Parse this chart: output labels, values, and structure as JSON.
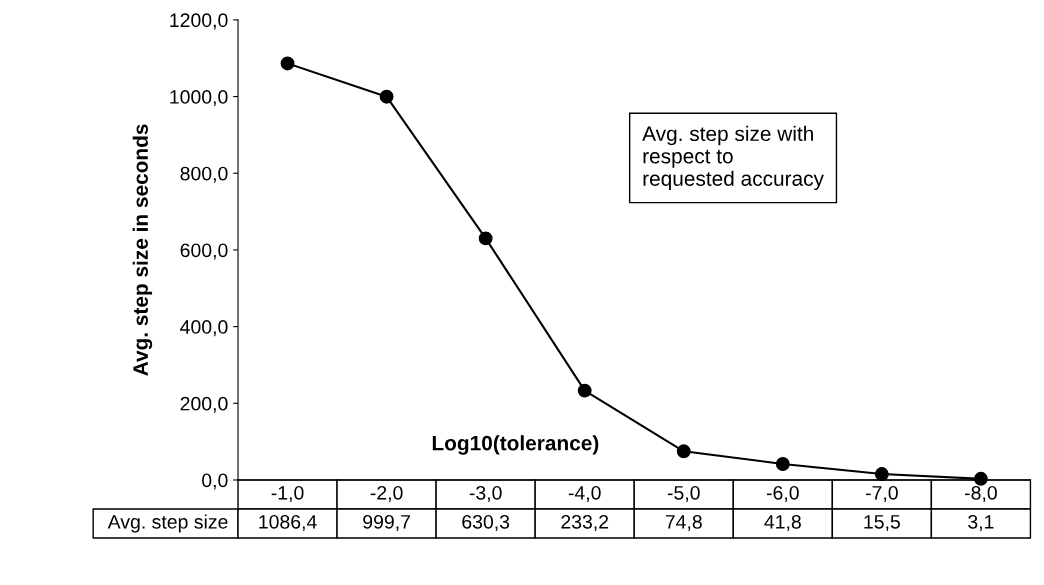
{
  "chart_data": {
    "type": "line",
    "ylabel": "Avg. step size in seconds",
    "xlabel": "Log10(tolerance)",
    "categories": [
      "-1,0",
      "-2,0",
      "-3,0",
      "-4,0",
      "-5,0",
      "-6,0",
      "-7,0",
      "-8,0"
    ],
    "series": [
      {
        "name": "Avg. step size",
        "color": "#000000",
        "values": [
          1086.4,
          999.7,
          630.3,
          233.2,
          74.8,
          41.8,
          15.5,
          3.1
        ],
        "value_labels": [
          "1086,4",
          "999,7",
          "630,3",
          "233,2",
          "74,8",
          "41,8",
          "15,5",
          "3,1"
        ]
      }
    ],
    "ylim": [
      0,
      1200
    ],
    "yticks": [
      {
        "value": 0,
        "label": "0,0"
      },
      {
        "value": 200,
        "label": "200,0"
      },
      {
        "value": 400,
        "label": "400,0"
      },
      {
        "value": 600,
        "label": "600,0"
      },
      {
        "value": 800,
        "label": "800,0"
      },
      {
        "value": 1000,
        "label": "1000,0"
      },
      {
        "value": 1200,
        "label": "1200,0"
      }
    ],
    "annotations": [
      "Avg. step size with\nrespect to\nrequested accuracy"
    ],
    "marker": "circle",
    "line_style": "solid",
    "grid": false,
    "legend": false
  }
}
